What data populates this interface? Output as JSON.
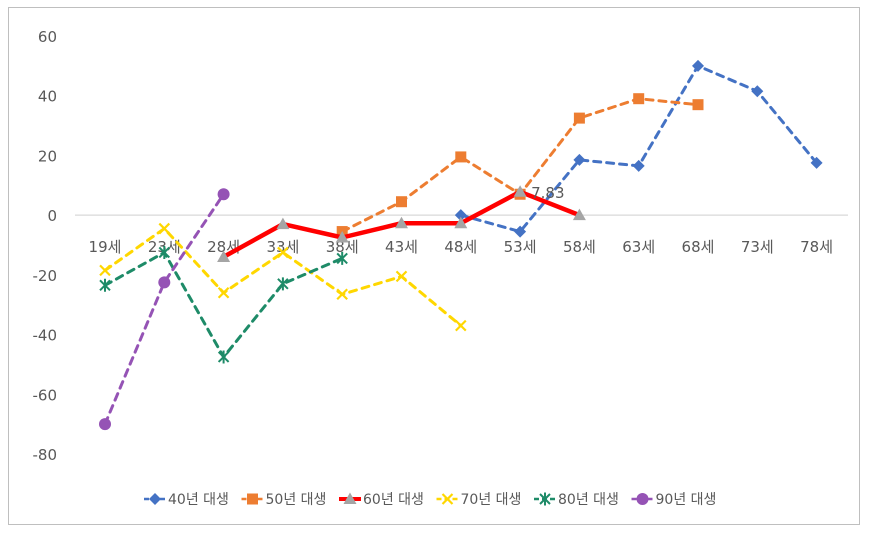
{
  "chart_data": {
    "type": "line",
    "title": "",
    "xlabel": "",
    "ylabel": "",
    "categories": [
      "19세",
      "23세",
      "28세",
      "33세",
      "38세",
      "43세",
      "48세",
      "53세",
      "58세",
      "63세",
      "68세",
      "73세",
      "78세"
    ],
    "ylim": [
      -80,
      60
    ],
    "yticks": [
      60,
      40,
      20,
      0,
      -20,
      -40,
      -60,
      -80
    ],
    "grid": false,
    "legend_position": "bottom",
    "series": [
      {
        "name": "40년 대생",
        "color": "#4472c4",
        "style": "dashed",
        "marker": "diamond",
        "values": [
          null,
          null,
          null,
          null,
          null,
          null,
          0,
          -5.5,
          18.5,
          16.5,
          50,
          41.5,
          17.5
        ]
      },
      {
        "name": "50년 대생",
        "color": "#ed7d31",
        "style": "dashed",
        "marker": "square",
        "values": [
          null,
          null,
          null,
          null,
          -5.5,
          4.5,
          19.5,
          7,
          32.5,
          39,
          37,
          null,
          null
        ]
      },
      {
        "name": "60년 대생",
        "color": "#ff0000",
        "style": "solid",
        "marker": "triangle",
        "values": [
          null,
          null,
          -14,
          -3,
          -7.5,
          -2.7,
          -2.7,
          7.83,
          0,
          null,
          null,
          null,
          null
        ]
      },
      {
        "name": "70년 대생",
        "color": "#ffd700",
        "style": "dashed",
        "marker": "x",
        "values": [
          -18.5,
          -4.5,
          -26,
          -12.5,
          -26.5,
          -20.5,
          -37,
          null,
          null,
          null,
          null,
          null,
          null
        ]
      },
      {
        "name": "80년 대생",
        "color": "#1e8b68",
        "style": "dashed",
        "marker": "star",
        "values": [
          -23.5,
          -12.5,
          -47.5,
          -23,
          -14.5,
          null,
          null,
          null,
          null,
          null,
          null,
          null,
          null
        ]
      },
      {
        "name": "90년 대생",
        "color": "#9553b5",
        "style": "dashed",
        "marker": "circle",
        "values": [
          -70,
          -22.5,
          7,
          null,
          null,
          null,
          null,
          null,
          null,
          null,
          null,
          null,
          null
        ]
      }
    ],
    "annotations": [
      {
        "label": "7.83"
      }
    ]
  }
}
